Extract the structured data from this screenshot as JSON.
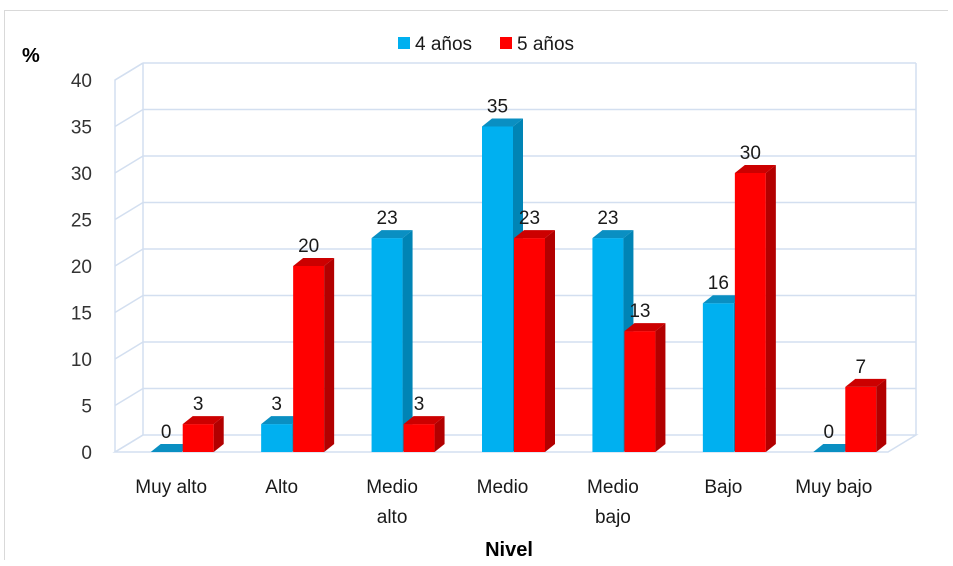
{
  "chart_data": {
    "type": "bar",
    "title": "",
    "xlabel": "Nivel",
    "ylabel": "%",
    "ylim": [
      0,
      40
    ],
    "yticks": [
      0,
      5,
      10,
      15,
      20,
      25,
      30,
      35,
      40
    ],
    "categories": [
      [
        "Muy alto"
      ],
      [
        "Alto"
      ],
      [
        "Medio",
        "alto"
      ],
      [
        "Medio"
      ],
      [
        "Medio",
        "bajo"
      ],
      [
        "Bajo"
      ],
      [
        "Muy bajo"
      ]
    ],
    "series": [
      {
        "name": "4 años",
        "values": [
          0,
          3,
          23,
          35,
          23,
          16,
          0
        ],
        "labels": [
          "0",
          "3",
          "23",
          "35",
          "23",
          "16",
          "0"
        ]
      },
      {
        "name": "5 años",
        "values": [
          3,
          20,
          3,
          23,
          13,
          30,
          7
        ],
        "labels": [
          "3",
          "20",
          "3",
          "23",
          "13",
          "30",
          "7"
        ]
      }
    ],
    "colors": {
      "series_front": [
        "#00b0f0",
        "#ff0000"
      ],
      "series_side": [
        "#0084b5",
        "#b20000"
      ],
      "series_top": [
        "#0a8fc2",
        "#cc0000"
      ],
      "grid": "#d3dff0",
      "floor": "#d3dff0"
    },
    "grid": true,
    "legend_position": "top"
  }
}
